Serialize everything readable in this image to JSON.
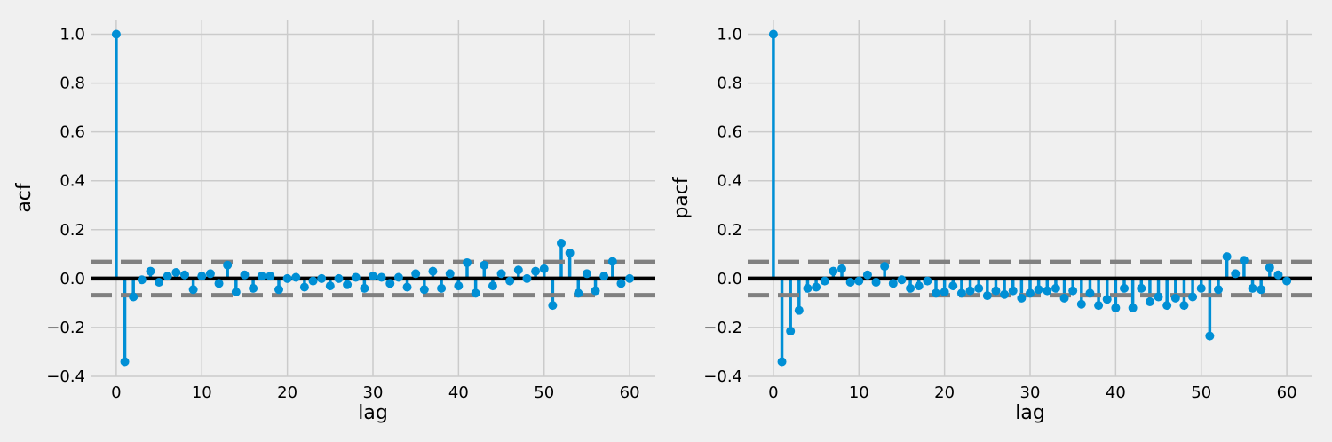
{
  "chart_data": [
    {
      "type": "stem",
      "xlabel": "lag",
      "ylabel": "acf",
      "xlim": [
        -3,
        63
      ],
      "ylim": [
        -0.4,
        1.06
      ],
      "x_ticks": [
        0,
        10,
        20,
        30,
        40,
        50,
        60
      ],
      "y_ticks": [
        -0.4,
        -0.2,
        0.0,
        0.2,
        0.4,
        0.6,
        0.8,
        1.0
      ],
      "y_tick_labels": [
        "−0.4",
        "−0.2",
        "0.0",
        "0.2",
        "0.4",
        "0.6",
        "0.8",
        "1.0"
      ],
      "confidence_band": [
        -0.068,
        0.068
      ],
      "grid": true,
      "color": "#008fd5",
      "x": [
        0,
        1,
        2,
        3,
        4,
        5,
        6,
        7,
        8,
        9,
        10,
        11,
        12,
        13,
        14,
        15,
        16,
        17,
        18,
        19,
        20,
        21,
        22,
        23,
        24,
        25,
        26,
        27,
        28,
        29,
        30,
        31,
        32,
        33,
        34,
        35,
        36,
        37,
        38,
        39,
        40,
        41,
        42,
        43,
        44,
        45,
        46,
        47,
        48,
        49,
        50,
        51,
        52,
        53,
        54,
        55,
        56,
        57,
        58,
        59,
        60
      ],
      "values": [
        1.0,
        -0.34,
        -0.075,
        -0.005,
        0.03,
        -0.015,
        0.01,
        0.025,
        0.015,
        -0.045,
        0.01,
        0.02,
        -0.02,
        0.055,
        -0.055,
        0.015,
        -0.04,
        0.01,
        0.01,
        -0.045,
        0.0,
        0.005,
        -0.035,
        -0.01,
        0.0,
        -0.03,
        0.0,
        -0.025,
        0.005,
        -0.04,
        0.01,
        0.005,
        -0.02,
        0.005,
        -0.035,
        0.02,
        -0.045,
        0.03,
        -0.04,
        0.02,
        -0.03,
        0.065,
        -0.06,
        0.055,
        -0.03,
        0.02,
        -0.01,
        0.035,
        0.0,
        0.03,
        0.04,
        -0.11,
        0.145,
        0.105,
        -0.06,
        0.02,
        -0.05,
        0.01,
        0.07,
        -0.02,
        0.0
      ]
    },
    {
      "type": "stem",
      "xlabel": "lag",
      "ylabel": "pacf",
      "xlim": [
        -3,
        63
      ],
      "ylim": [
        -0.4,
        1.06
      ],
      "x_ticks": [
        0,
        10,
        20,
        30,
        40,
        50,
        60
      ],
      "y_ticks": [
        -0.4,
        -0.2,
        0.0,
        0.2,
        0.4,
        0.6,
        0.8,
        1.0
      ],
      "y_tick_labels": [
        "−0.4",
        "−0.2",
        "0.0",
        "0.2",
        "0.4",
        "0.6",
        "0.8",
        "1.0"
      ],
      "confidence_band": [
        -0.068,
        0.068
      ],
      "grid": true,
      "color": "#008fd5",
      "x": [
        0,
        1,
        2,
        3,
        4,
        5,
        6,
        7,
        8,
        9,
        10,
        11,
        12,
        13,
        14,
        15,
        16,
        17,
        18,
        19,
        20,
        21,
        22,
        23,
        24,
        25,
        26,
        27,
        28,
        29,
        30,
        31,
        32,
        33,
        34,
        35,
        36,
        37,
        38,
        39,
        40,
        41,
        42,
        43,
        44,
        45,
        46,
        47,
        48,
        49,
        50,
        51,
        52,
        53,
        54,
        55,
        56,
        57,
        58,
        59,
        60
      ],
      "values": [
        1.0,
        -0.34,
        -0.215,
        -0.13,
        -0.04,
        -0.035,
        -0.01,
        0.03,
        0.04,
        -0.015,
        -0.01,
        0.015,
        -0.015,
        0.05,
        -0.02,
        -0.005,
        -0.04,
        -0.03,
        -0.01,
        -0.06,
        -0.055,
        -0.03,
        -0.06,
        -0.05,
        -0.04,
        -0.07,
        -0.05,
        -0.065,
        -0.05,
        -0.08,
        -0.06,
        -0.045,
        -0.05,
        -0.04,
        -0.08,
        -0.05,
        -0.105,
        -0.06,
        -0.11,
        -0.085,
        -0.12,
        -0.04,
        -0.12,
        -0.04,
        -0.095,
        -0.075,
        -0.11,
        -0.08,
        -0.11,
        -0.075,
        -0.04,
        -0.235,
        -0.045,
        0.09,
        0.02,
        0.075,
        -0.04,
        -0.045,
        0.045,
        0.015,
        -0.01
      ]
    }
  ]
}
